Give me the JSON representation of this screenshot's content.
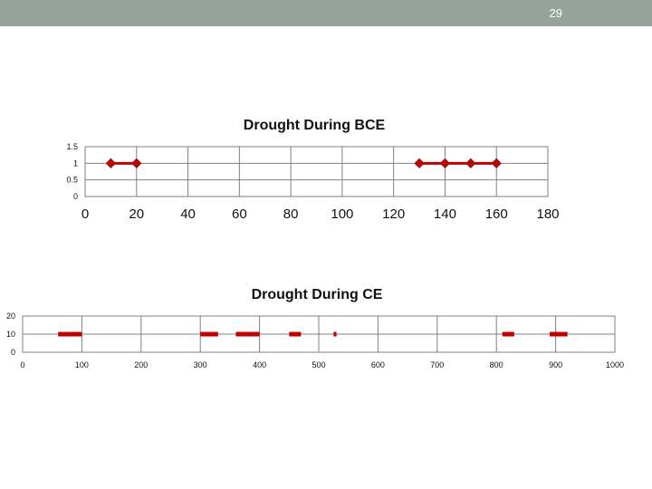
{
  "slide": {
    "page_number": "29"
  },
  "colors": {
    "header_bar": "#96a39a",
    "series": "#c00000",
    "grid": "#7f7f7f"
  },
  "chart_data": [
    {
      "type": "line",
      "title": "Drought During BCE",
      "xlabel": "",
      "ylabel": "",
      "xlim": [
        0,
        180
      ],
      "ylim": [
        0,
        1.5
      ],
      "x_ticks": [
        "0",
        "20",
        "40",
        "60",
        "80",
        "100",
        "120",
        "140",
        "160",
        "180"
      ],
      "y_ticks": [
        "0",
        "0.5",
        "1",
        "1.5"
      ],
      "grid": true,
      "markers": "diamond",
      "series": [
        {
          "x": [
            10,
            20
          ],
          "y": [
            1,
            1
          ]
        },
        {
          "x": [
            130,
            140,
            150,
            160
          ],
          "y": [
            1,
            1,
            1,
            1
          ]
        }
      ]
    },
    {
      "type": "line",
      "title": "Drought During CE",
      "xlabel": "",
      "ylabel": "",
      "xlim": [
        0,
        1000
      ],
      "ylim": [
        0,
        20
      ],
      "x_ticks": [
        "0",
        "100",
        "200",
        "300",
        "400",
        "500",
        "600",
        "700",
        "800",
        "900",
        "1000"
      ],
      "y_ticks": [
        "0",
        "10",
        "20"
      ],
      "grid": true,
      "markers": "none",
      "series": [
        {
          "x": [
            60,
            100
          ],
          "y": [
            10,
            10
          ]
        },
        {
          "x": [
            300,
            330
          ],
          "y": [
            10,
            10
          ]
        },
        {
          "x": [
            360,
            400
          ],
          "y": [
            10,
            10
          ]
        },
        {
          "x": [
            450,
            470
          ],
          "y": [
            10,
            10
          ]
        },
        {
          "x": [
            525,
            530
          ],
          "y": [
            10,
            10
          ]
        },
        {
          "x": [
            810,
            830
          ],
          "y": [
            10,
            10
          ]
        },
        {
          "x": [
            890,
            920
          ],
          "y": [
            10,
            10
          ]
        }
      ]
    }
  ]
}
